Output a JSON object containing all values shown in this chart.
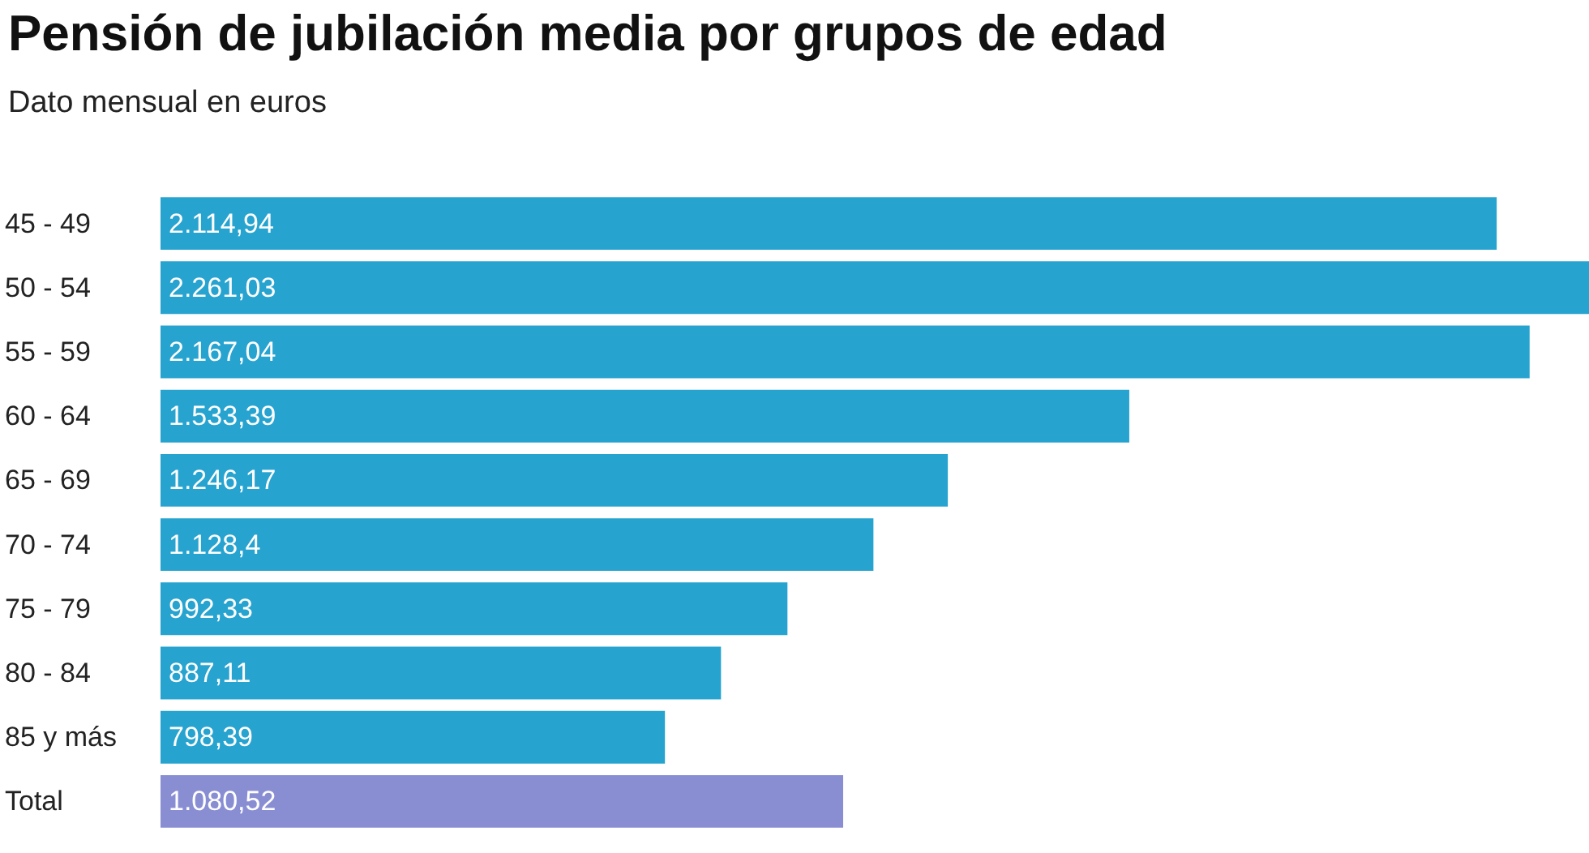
{
  "chart_data": {
    "type": "bar",
    "orientation": "horizontal",
    "title": "Pensión de jubilación media por grupos de edad",
    "subtitle": "Dato mensual en euros",
    "categories": [
      "45 - 49",
      "50 - 54",
      "55 - 59",
      "60 - 64",
      "65 - 69",
      "70 - 74",
      "75 - 79",
      "80 - 84",
      "85 y más",
      "Total"
    ],
    "values": [
      2114.94,
      2261.03,
      2167.04,
      1533.39,
      1246.17,
      1128.4,
      992.33,
      887.11,
      798.39,
      1080.52
    ],
    "value_labels": [
      "2.114,94",
      "2.261,03",
      "2.167,04",
      "1.533,39",
      "1.246,17",
      "1.128,4",
      "992,33",
      "887,11",
      "798,39",
      "1.080,52"
    ],
    "colors": [
      "#27a3d0",
      "#27a3d0",
      "#27a3d0",
      "#27a3d0",
      "#27a3d0",
      "#27a3d0",
      "#27a3d0",
      "#27a3d0",
      "#27a3d0",
      "#898ed3"
    ]
  }
}
